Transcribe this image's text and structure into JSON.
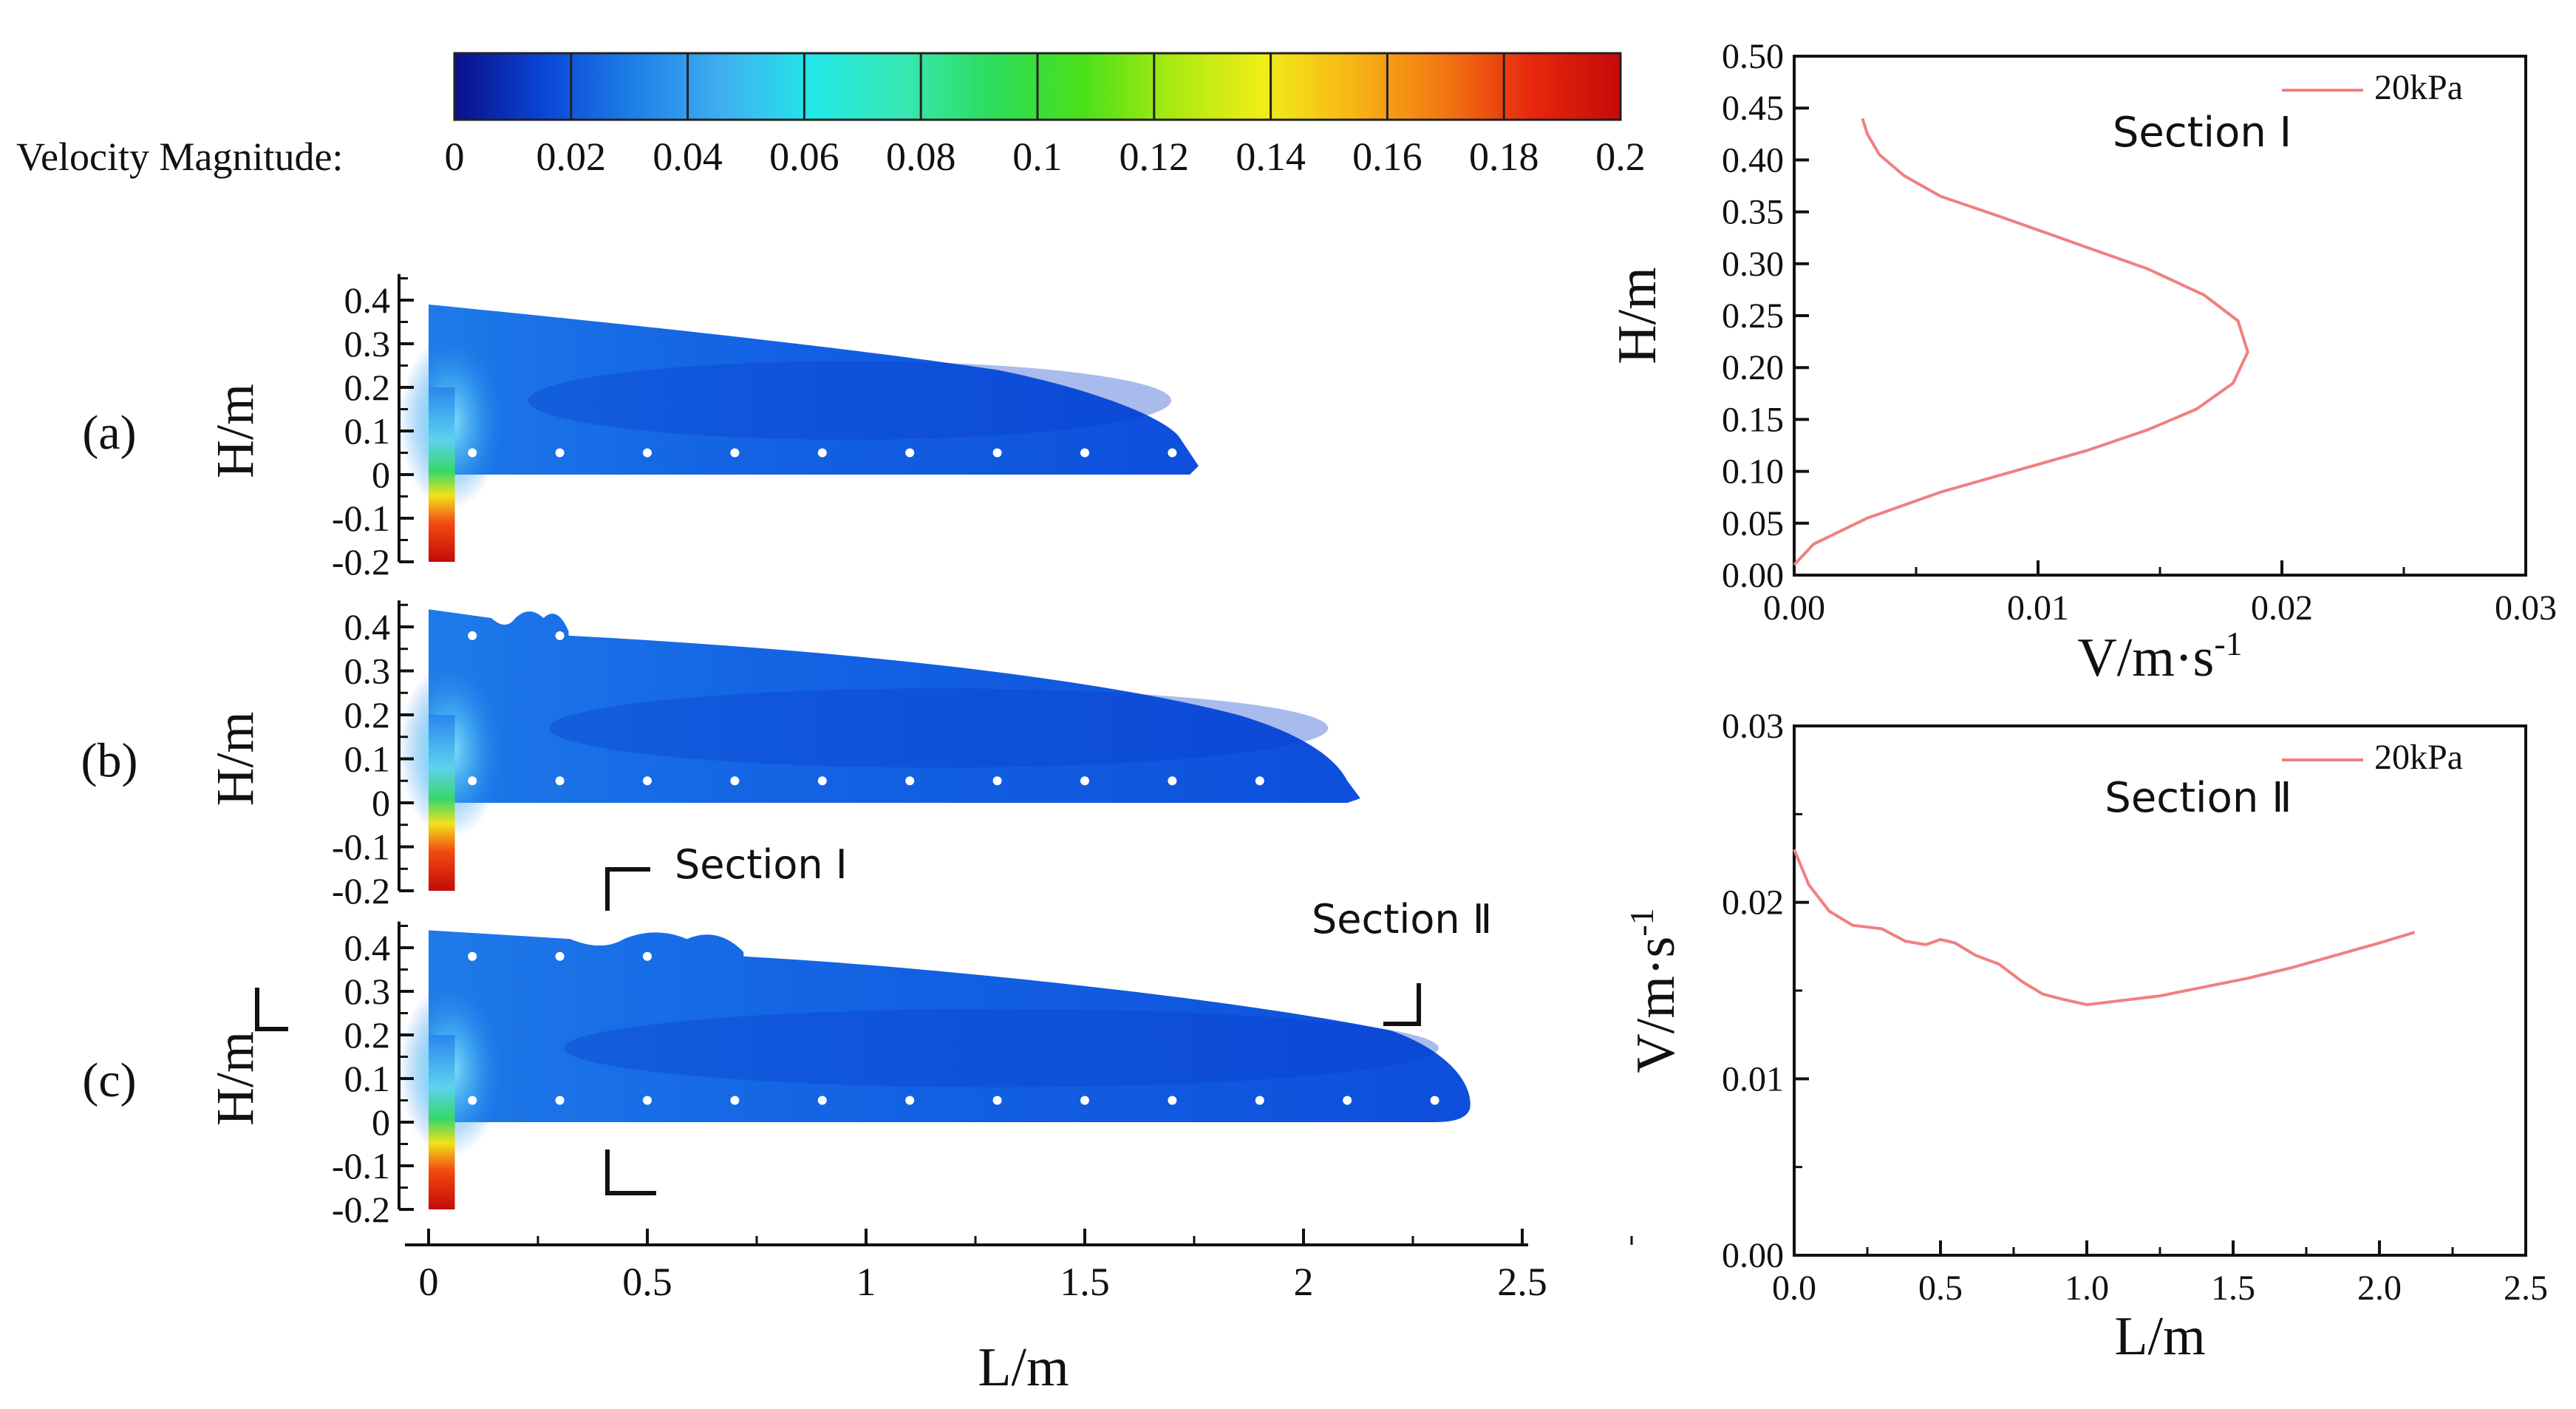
{
  "colorbar": {
    "label": "Velocity Magnitude:",
    "ticks": [
      "0",
      "0.02",
      "0.04",
      "0.06",
      "0.08",
      "0.1",
      "0.12",
      "0.14",
      "0.16",
      "0.18",
      "0.2"
    ],
    "range": [
      0,
      0.2
    ],
    "stops": [
      "#0a0f8a",
      "#0a46d6",
      "#1e7fe8",
      "#3fb0f0",
      "#22e8e8",
      "#38e8b4",
      "#2cdc5a",
      "#4ae01a",
      "#a8ea10",
      "#f0ee18",
      "#f7b616",
      "#f27a12",
      "#e8280e",
      "#c40a0a"
    ]
  },
  "contour": {
    "panels": [
      {
        "label": "(a)",
        "ylabel": "H/m",
        "length": 1.75
      },
      {
        "label": "(b)",
        "ylabel": "H/m",
        "length": 2.12
      },
      {
        "label": "(c)",
        "ylabel": "H/m",
        "length": 2.38
      }
    ],
    "yticks": [
      "0.4",
      "0.3",
      "0.2",
      "0.1",
      "0",
      "-0.1",
      "-0.2"
    ],
    "xticks": [
      "0",
      "0.5",
      "1",
      "1.5",
      "2",
      "2.5"
    ],
    "xlabel": "L/m",
    "sections": {
      "one": "Section Ⅰ",
      "two": "Section Ⅱ"
    },
    "colors": {
      "deep": "#0b3fd6",
      "mid": "#1466e6",
      "light": "#2a86ee",
      "cyan": "#5cd2ee",
      "jet_red": "#e02010",
      "jet_yellow": "#f2e21a",
      "jet_green": "#36d86a"
    }
  },
  "chart_data": [
    {
      "type": "line",
      "title": "Section Ⅰ",
      "xlabel": "V/m·s",
      "xlabel_sup": "-1",
      "ylabel": "H/m",
      "xlim": [
        0.0,
        0.03
      ],
      "ylim": [
        0.0,
        0.5
      ],
      "xticks": [
        "0.00",
        "0.01",
        "0.02",
        "0.03"
      ],
      "yticks": [
        "0.00",
        "0.05",
        "0.10",
        "0.15",
        "0.20",
        "0.25",
        "0.30",
        "0.35",
        "0.40",
        "0.45",
        "0.50"
      ],
      "legend": {
        "entry": "20kPa",
        "placement": "top-right"
      },
      "series": [
        {
          "name": "20kPa",
          "color": "#f08080",
          "x": [
            0.0,
            0.0008,
            0.003,
            0.006,
            0.009,
            0.012,
            0.0145,
            0.0165,
            0.018,
            0.0186,
            0.0182,
            0.0168,
            0.0145,
            0.0115,
            0.0085,
            0.006,
            0.0045,
            0.0035,
            0.003,
            0.0028
          ],
          "y": [
            0.01,
            0.03,
            0.055,
            0.08,
            0.1,
            0.12,
            0.14,
            0.16,
            0.185,
            0.215,
            0.245,
            0.27,
            0.295,
            0.32,
            0.345,
            0.365,
            0.385,
            0.405,
            0.425,
            0.44
          ]
        }
      ]
    },
    {
      "type": "line",
      "title": "Section Ⅱ",
      "xlabel": "L/m",
      "ylabel": "V/m·s",
      "ylabel_sup": "-1",
      "xlim": [
        0.0,
        2.5
      ],
      "ylim": [
        0.0,
        0.03
      ],
      "xticks": [
        "0.0",
        "0.5",
        "1.0",
        "1.5",
        "2.0",
        "2.5"
      ],
      "yticks": [
        "0.00",
        "0.01",
        "0.02",
        "0.03"
      ],
      "legend": {
        "entry": "20kPa",
        "placement": "top-right"
      },
      "series": [
        {
          "name": "20kPa",
          "color": "#f08080",
          "x": [
            0.0,
            0.05,
            0.12,
            0.2,
            0.3,
            0.38,
            0.45,
            0.5,
            0.55,
            0.62,
            0.7,
            0.78,
            0.85,
            0.92,
            1.0,
            1.1,
            1.25,
            1.4,
            1.55,
            1.7,
            1.85,
            2.0,
            2.12
          ],
          "y": [
            0.023,
            0.021,
            0.0195,
            0.0187,
            0.0185,
            0.0178,
            0.0176,
            0.0179,
            0.0177,
            0.017,
            0.0165,
            0.0155,
            0.0148,
            0.0145,
            0.0142,
            0.0144,
            0.0147,
            0.0152,
            0.0157,
            0.0163,
            0.017,
            0.0177,
            0.0183
          ]
        }
      ]
    }
  ]
}
